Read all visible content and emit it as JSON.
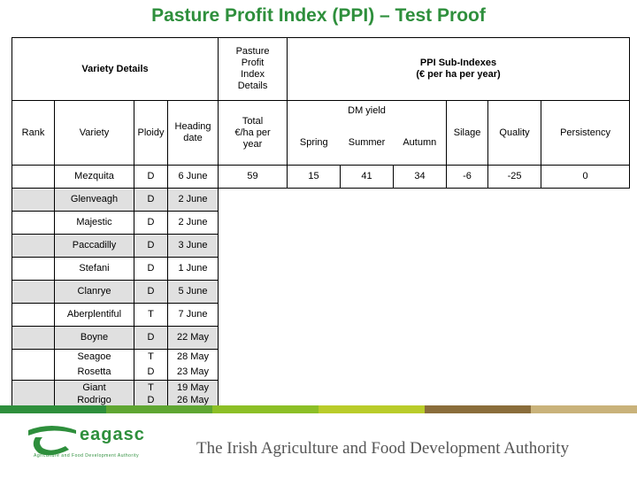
{
  "title": "Pasture Profit Index (PPI) – Test Proof",
  "header": {
    "variety_details": "Variety Details",
    "ppi_details_lines": [
      "Pasture",
      "Profit",
      "Index",
      "Details"
    ],
    "sub_index_lines": [
      "PPI Sub-Indexes",
      "(€ per ha per year)"
    ],
    "rank": "Rank",
    "variety": "Variety",
    "ploidy": "Ploidy",
    "heading_date_lines": [
      "Heading",
      "date"
    ],
    "total_lines": [
      "Total",
      "€/ha per",
      "year"
    ],
    "dm_yield": "DM yield",
    "spring": "Spring",
    "summer": "Summer",
    "autumn": "Autumn",
    "silage": "Silage",
    "quality": "Quality",
    "persistency": "Persistency"
  },
  "rows": [
    {
      "rank": "",
      "variety": "Mezquita",
      "ploidy": "D",
      "heading": "6 June",
      "total": "59",
      "spring": "15",
      "summer": "41",
      "autumn": "34",
      "silage": "-6",
      "quality": "-25",
      "persistency": "0"
    },
    {
      "rank": "",
      "variety": "Glenveagh",
      "ploidy": "D",
      "heading": "2 June"
    },
    {
      "rank": "",
      "variety": "Majestic",
      "ploidy": "D",
      "heading": "2 June"
    },
    {
      "rank": "",
      "variety": "Paccadilly",
      "ploidy": "D",
      "heading": "3 June"
    },
    {
      "rank": "",
      "variety": "Stefani",
      "ploidy": "D",
      "heading": "1 June"
    },
    {
      "rank": "",
      "variety": "Clanrye",
      "ploidy": "D",
      "heading": "5 June"
    },
    {
      "rank": "",
      "variety": "Aberplentiful",
      "ploidy": "T",
      "heading": "7 June"
    },
    {
      "rank": "",
      "variety": "Boyne",
      "ploidy": "D",
      "heading": "22 May"
    }
  ],
  "stack_rows": [
    {
      "variety": [
        "Seagoe",
        "Rosetta"
      ],
      "ploidy": [
        "T",
        "D"
      ],
      "heading": [
        "28 May",
        "23 May"
      ]
    },
    {
      "variety": [
        "Giant",
        "Rodrigo"
      ],
      "ploidy": [
        "T",
        "D"
      ],
      "heading": [
        "19 May",
        "26 May"
      ]
    }
  ],
  "footer": {
    "logo_text": "eagasc",
    "logo_sub": "Agriculture and Food Development Authority",
    "tagline": "The Irish Agriculture and Food Development Authority"
  },
  "colors": {
    "title": "#2e8f3c",
    "bar": [
      "#2e8f3c",
      "#5fa632",
      "#8cbf26",
      "#b9cc2a",
      "#8a6d3b",
      "#c9b27a"
    ]
  }
}
